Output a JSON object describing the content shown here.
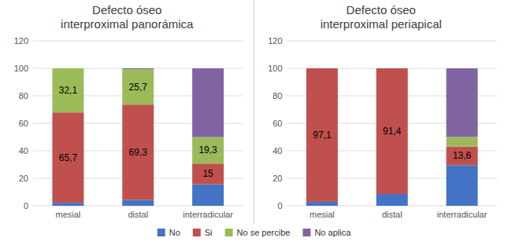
{
  "chart_data": [
    {
      "type": "bar",
      "stacked": true,
      "title": "Defecto óseo\ninterproximal panorámica",
      "categories": [
        "mesial",
        "distal",
        "interradicular"
      ],
      "series": [
        {
          "name": "No",
          "color": "#4472C4",
          "values": [
            2.2,
            4.3,
            15.7
          ]
        },
        {
          "name": "Si",
          "color": "#C0504D",
          "values": [
            65.7,
            69.3,
            15.0
          ],
          "data_labels": true,
          "value_labels": [
            "65,7",
            "69,3",
            "15"
          ]
        },
        {
          "name": "No se percibe",
          "color": "#9BBB59",
          "values": [
            32.1,
            25.7,
            19.3
          ],
          "data_labels": true,
          "value_labels": [
            "32,1",
            "25,7",
            "19,3"
          ]
        },
        {
          "name": "No aplica",
          "color": "#8064A2",
          "values": [
            0.0,
            0.7,
            50.0
          ]
        }
      ],
      "ylim": [
        0,
        120
      ],
      "yticks": [
        0,
        20,
        40,
        60,
        80,
        100,
        120
      ],
      "grid": true,
      "legend": "bottom"
    },
    {
      "type": "bar",
      "stacked": true,
      "title": "Defecto óseo\ninterproximal periapical",
      "categories": [
        "mesial",
        "distal",
        "interradicular"
      ],
      "series": [
        {
          "name": "No",
          "color": "#4472C4",
          "values": [
            2.9,
            8.6,
            29.5
          ]
        },
        {
          "name": "Si",
          "color": "#C0504D",
          "values": [
            97.1,
            91.4,
            13.6
          ],
          "data_labels": true,
          "value_labels": [
            "97,1",
            "91,4",
            "13,6"
          ]
        },
        {
          "name": "No se percibe",
          "color": "#9BBB59",
          "values": [
            0.0,
            0.0,
            7.0
          ]
        },
        {
          "name": "No aplica",
          "color": "#8064A2",
          "values": [
            0.0,
            0.0,
            49.9
          ]
        }
      ],
      "ylim": [
        0,
        120
      ],
      "yticks": [
        0,
        20,
        40,
        60,
        80,
        100,
        120
      ],
      "grid": true
    }
  ]
}
